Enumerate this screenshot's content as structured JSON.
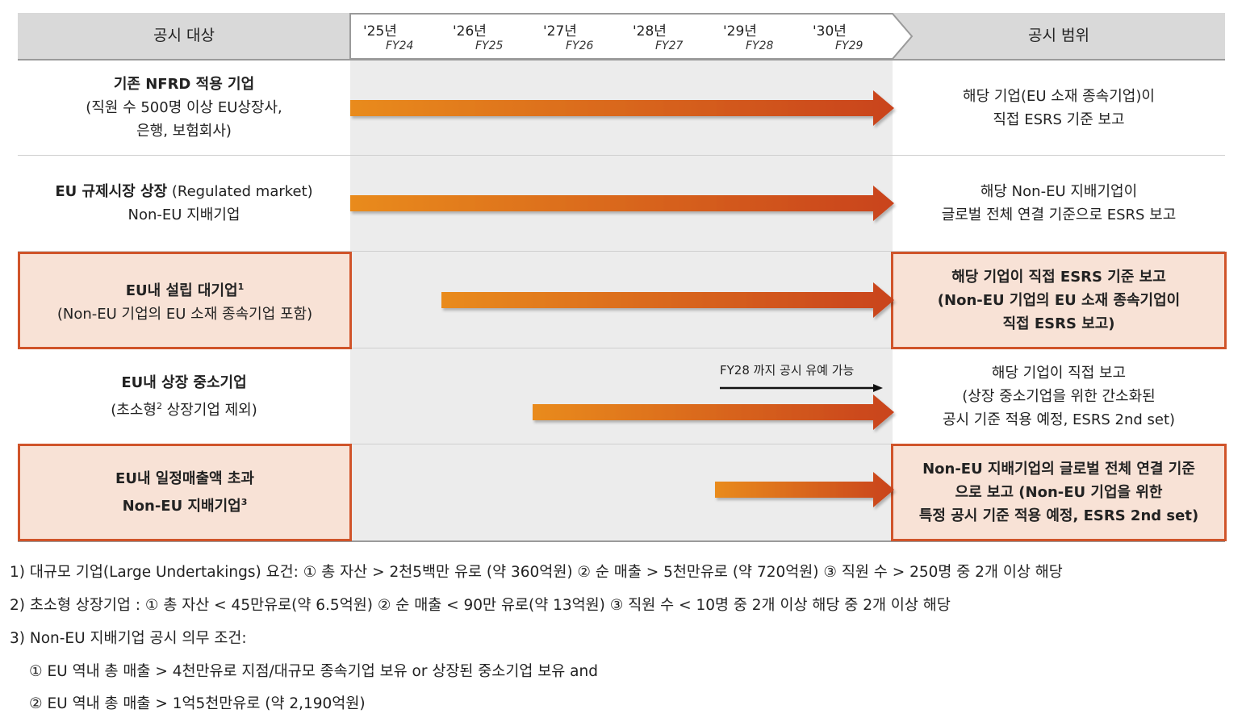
{
  "header": {
    "left_title": "공시 대상",
    "right_title": "공시 범위",
    "years": [
      {
        "year": "'25년",
        "fy": "FY24"
      },
      {
        "year": "'26년",
        "fy": "FY25"
      },
      {
        "year": "'27년",
        "fy": "FY26"
      },
      {
        "year": "'28년",
        "fy": "FY27"
      },
      {
        "year": "'29년",
        "fy": "FY28"
      },
      {
        "year": "'30년",
        "fy": "FY29"
      }
    ]
  },
  "rows": [
    {
      "target": [
        "기존 NFRD 적용 기업",
        "(직원 수 500명 이상 EU상장사,",
        "은행, 보험회사)"
      ],
      "scope": [
        "해당 기업(EU 소재 종속기업)이",
        "직접 ESRS 기준 보고"
      ],
      "start_year": "'25년",
      "highlight": false
    },
    {
      "target_bold": "EU 규제시장 상장",
      "target_rest": " (Regulated market)",
      "target_line2": "Non-EU 지배기업",
      "scope": [
        "해당 Non-EU 지배기업이",
        "글로벌 전체 연결 기준으로 ESRS 보고"
      ],
      "start_year": "'25년",
      "highlight": false
    },
    {
      "target_bold": "EU내 설립 대기업",
      "target_sup": "1",
      "target_line2": "(Non-EU 기업의 EU 소재 종속기업 포함)",
      "scope": [
        "해당 기업이 직접 ESRS 기준 보고",
        "(Non-EU 기업의 EU 소재 종속기업이",
        "직접 ESRS 보고)"
      ],
      "start_year": "'26년",
      "highlight": true
    },
    {
      "target_bold": "EU내 상장 중소기업",
      "target_line2_pre": "(초소형",
      "target_sup": "2",
      "target_line2_post": " 상장기업 제외)",
      "scope": [
        "해당 기업이 직접 보고",
        "(상장 중소기업을 위한 간소화된",
        "공시 기준 적용 예정, ESRS 2nd set)"
      ],
      "note": "FY28 까지 공시 유예 가능",
      "start_year": "'27년",
      "highlight": false
    },
    {
      "target_bold": "EU내 일정매출액 초과",
      "target_line2": "Non-EU 지배기업",
      "target_sup": "3",
      "scope": [
        "Non-EU 지배기업의 글로벌 전체 연결 기준",
        "으로 보고 (Non-EU 기업을 위한",
        "특정 공시 기준 적용 예정, ESRS 2nd set)"
      ],
      "start_year": "'29년",
      "highlight": true
    }
  ],
  "footnotes": [
    "1) 대규모 기업(Large Undertakings) 요건: ① 총 자산 > 2천5백만 유로 (약 360억원) ② 순 매출 > 5천만유로 (약 720억원) ③ 직원 수 > 250명 중 2개 이상 해당",
    "2) 초소형 상장기업 : ① 총 자산 < 45만유로(약 6.5억원) ② 순 매출 < 90만 유로(약 13억원) ③ 직원 수 < 10명 중 2개 이상 해당 중 2개 이상 해당",
    "3) Non-EU 지배기업 공시 의무 조건:",
    "① EU 역내 총 매출 > 4천만유로 지점/대규모 종속기업 보유 or  상장된 중소기업 보유 and",
    "② EU 역내 총 매출 > 1억5천만유로 (약 2,190억원)"
  ],
  "colors": {
    "arrow_start": "#e98b1a",
    "arrow_end": "#c9431f",
    "highlight_fill": "#f8e2d6",
    "highlight_border": "#d0542a"
  }
}
